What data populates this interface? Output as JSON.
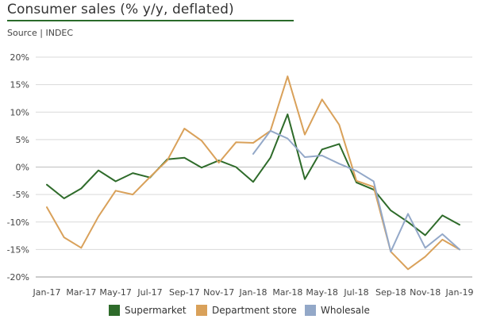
{
  "title": "Consumer sales (% y/y, deflated)",
  "source": "Source | INDEC",
  "colors": {
    "supermarket": "#2e6b2a",
    "department_store": "#d9a15a",
    "wholesale": "#93a8c8",
    "title_rule": "#2a6b2a",
    "grid": "#d9d9d9",
    "axis": "#999999"
  },
  "chart_data": {
    "type": "line",
    "ylim": [
      -20,
      20
    ],
    "y_ticks": [
      "20%",
      "15%",
      "10%",
      "5%",
      "0%",
      "-5%",
      "-10%",
      "-15%",
      "-20%"
    ],
    "x_tick_labels": [
      "Jan-17",
      "Mar-17",
      "May-17",
      "Jul-17",
      "Sep-17",
      "Nov-17",
      "Jan-18",
      "Mar-18",
      "May-18",
      "Jul-18",
      "Sep-18",
      "Nov-18",
      "Jan-19"
    ],
    "x": [
      "Jan-17",
      "Feb-17",
      "Mar-17",
      "Apr-17",
      "May-17",
      "Jun-17",
      "Jul-17",
      "Aug-17",
      "Sep-17",
      "Oct-17",
      "Nov-17",
      "Dec-17",
      "Jan-18",
      "Feb-18",
      "Mar-18",
      "Apr-18",
      "May-18",
      "Jun-18",
      "Jul-18",
      "Aug-18",
      "Sep-18",
      "Oct-18",
      "Nov-18",
      "Dec-18",
      "Jan-19"
    ],
    "grid": true,
    "legend_position": "bottom",
    "series": [
      {
        "name": "Supermarket",
        "color": "#2e6b2a",
        "values": [
          -3.2,
          -5.7,
          -3.9,
          -0.6,
          -2.6,
          -1.1,
          -1.9,
          1.4,
          1.7,
          -0.1,
          1.2,
          0.0,
          -2.7,
          1.7,
          9.6,
          -2.2,
          3.2,
          4.2,
          -2.8,
          -4.1,
          -7.9,
          -10.0,
          -12.4,
          -8.8,
          -10.5
        ]
      },
      {
        "name": "Department store",
        "color": "#d9a15a",
        "values": [
          -7.3,
          -12.8,
          -14.7,
          -9.0,
          -4.3,
          -5.0,
          -1.8,
          1.2,
          7.0,
          4.8,
          0.8,
          4.5,
          4.4,
          6.6,
          16.5,
          5.9,
          12.3,
          7.7,
          -2.5,
          -3.6,
          -15.4,
          -18.6,
          -16.3,
          -13.2,
          -15.0
        ]
      },
      {
        "name": "Wholesale",
        "color": "#93a8c8",
        "values": [
          null,
          null,
          null,
          null,
          null,
          null,
          null,
          null,
          null,
          null,
          null,
          null,
          2.4,
          6.6,
          5.2,
          1.8,
          2.1,
          0.6,
          -0.7,
          -2.6,
          -15.4,
          -8.5,
          -14.7,
          -12.2,
          -15.0
        ]
      }
    ]
  },
  "legend": [
    {
      "label": "Supermarket",
      "color": "#2e6b2a"
    },
    {
      "label": "Department store",
      "color": "#d9a15a"
    },
    {
      "label": "Wholesale",
      "color": "#93a8c8"
    }
  ]
}
